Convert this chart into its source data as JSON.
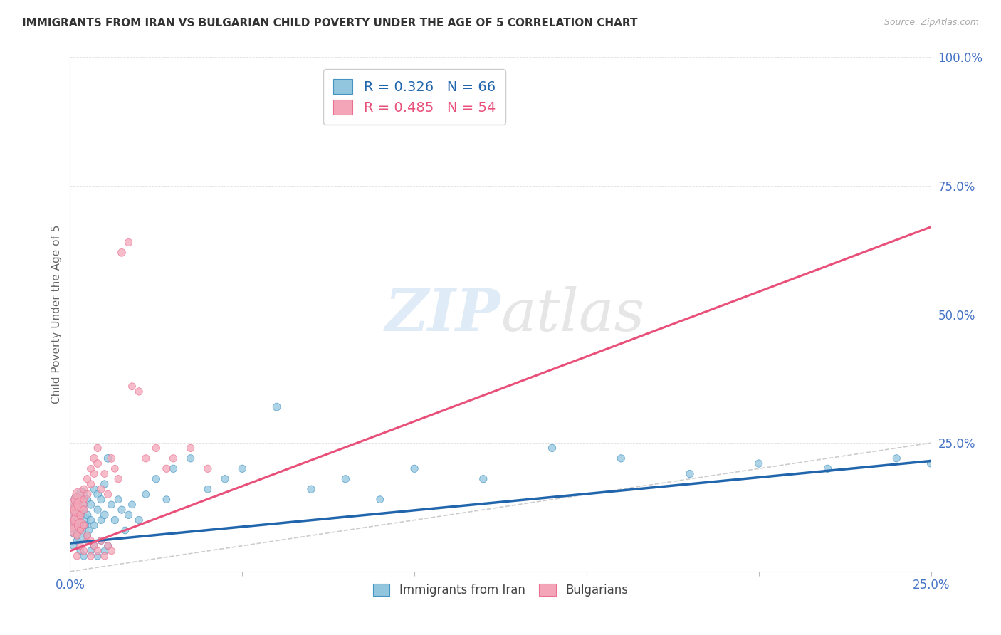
{
  "title": "IMMIGRANTS FROM IRAN VS BULGARIAN CHILD POVERTY UNDER THE AGE OF 5 CORRELATION CHART",
  "source": "Source: ZipAtlas.com",
  "ylabel": "Child Poverty Under the Age of 5",
  "legend_blue_label": "R = 0.326   N = 66",
  "legend_pink_label": "R = 0.485   N = 54",
  "legend_label_blue": "Immigrants from Iran",
  "legend_label_pink": "Bulgarians",
  "blue_color": "#92c5de",
  "pink_color": "#f4a6b8",
  "blue_edge_color": "#4393c3",
  "pink_edge_color": "#e87090",
  "blue_line_color": "#2166ac",
  "pink_line_color": "#e8507a",
  "diag_color": "#cccccc",
  "tick_color": "#4472c4",
  "watermark_color": "#d5e8f5",
  "xlim": [
    0.0,
    0.25
  ],
  "ylim": [
    0.0,
    1.0
  ],
  "blue_line_x": [
    0.0,
    0.25
  ],
  "blue_line_y": [
    0.055,
    0.215
  ],
  "pink_line_x": [
    0.0,
    0.25
  ],
  "pink_line_y": [
    0.04,
    0.67
  ],
  "blue_scatter_x": [
    0.0005,
    0.001,
    0.0015,
    0.002,
    0.002,
    0.0025,
    0.003,
    0.003,
    0.0035,
    0.004,
    0.004,
    0.0045,
    0.005,
    0.005,
    0.0055,
    0.006,
    0.006,
    0.007,
    0.007,
    0.008,
    0.008,
    0.009,
    0.009,
    0.01,
    0.01,
    0.011,
    0.012,
    0.013,
    0.014,
    0.015,
    0.016,
    0.017,
    0.018,
    0.02,
    0.022,
    0.025,
    0.028,
    0.03,
    0.035,
    0.04,
    0.045,
    0.05,
    0.06,
    0.07,
    0.08,
    0.09,
    0.1,
    0.12,
    0.14,
    0.16,
    0.18,
    0.2,
    0.22,
    0.24,
    0.25,
    0.001,
    0.002,
    0.003,
    0.004,
    0.005,
    0.006,
    0.007,
    0.008,
    0.009,
    0.01,
    0.011
  ],
  "blue_scatter_y": [
    0.1,
    0.12,
    0.08,
    0.14,
    0.09,
    0.11,
    0.13,
    0.07,
    0.15,
    0.1,
    0.12,
    0.09,
    0.11,
    0.14,
    0.08,
    0.1,
    0.13,
    0.16,
    0.09,
    0.12,
    0.15,
    0.1,
    0.14,
    0.11,
    0.17,
    0.22,
    0.13,
    0.1,
    0.14,
    0.12,
    0.08,
    0.11,
    0.13,
    0.1,
    0.15,
    0.18,
    0.14,
    0.2,
    0.22,
    0.16,
    0.18,
    0.2,
    0.32,
    0.16,
    0.18,
    0.14,
    0.2,
    0.18,
    0.24,
    0.22,
    0.19,
    0.21,
    0.2,
    0.22,
    0.21,
    0.05,
    0.06,
    0.04,
    0.03,
    0.07,
    0.04,
    0.05,
    0.03,
    0.06,
    0.04,
    0.05
  ],
  "blue_scatter_size": [
    180,
    160,
    200,
    140,
    170,
    150,
    160,
    180,
    140,
    160,
    55,
    50,
    60,
    55,
    50,
    55,
    60,
    55,
    50,
    55,
    60,
    50,
    55,
    60,
    55,
    60,
    50,
    55,
    50,
    55,
    50,
    55,
    50,
    55,
    50,
    55,
    50,
    55,
    55,
    50,
    55,
    55,
    60,
    55,
    55,
    50,
    55,
    55,
    55,
    55,
    55,
    55,
    55,
    55,
    55,
    50,
    50,
    50,
    50,
    50,
    50,
    50,
    50,
    50,
    50,
    50
  ],
  "pink_scatter_x": [
    0.0005,
    0.001,
    0.001,
    0.0015,
    0.002,
    0.002,
    0.002,
    0.0025,
    0.003,
    0.003,
    0.003,
    0.004,
    0.004,
    0.004,
    0.005,
    0.005,
    0.006,
    0.006,
    0.007,
    0.007,
    0.008,
    0.008,
    0.009,
    0.01,
    0.011,
    0.012,
    0.013,
    0.014,
    0.015,
    0.017,
    0.018,
    0.02,
    0.022,
    0.025,
    0.028,
    0.03,
    0.035,
    0.04,
    0.002,
    0.003,
    0.004,
    0.005,
    0.006,
    0.007,
    0.008,
    0.009,
    0.01,
    0.011,
    0.012,
    0.005,
    0.003,
    0.002,
    0.004,
    0.006
  ],
  "pink_scatter_y": [
    0.09,
    0.11,
    0.13,
    0.08,
    0.1,
    0.14,
    0.12,
    0.15,
    0.09,
    0.13,
    0.11,
    0.16,
    0.12,
    0.14,
    0.18,
    0.15,
    0.2,
    0.17,
    0.22,
    0.19,
    0.24,
    0.21,
    0.16,
    0.19,
    0.15,
    0.22,
    0.2,
    0.18,
    0.62,
    0.64,
    0.36,
    0.35,
    0.22,
    0.24,
    0.2,
    0.22,
    0.24,
    0.2,
    0.03,
    0.05,
    0.04,
    0.06,
    0.03,
    0.05,
    0.04,
    0.06,
    0.03,
    0.05,
    0.04,
    0.07,
    0.08,
    0.07,
    0.09,
    0.06
  ],
  "pink_scatter_size": [
    160,
    170,
    150,
    180,
    160,
    140,
    170,
    150,
    160,
    180,
    55,
    55,
    60,
    50,
    55,
    60,
    50,
    55,
    60,
    50,
    55,
    60,
    55,
    50,
    55,
    60,
    50,
    55,
    60,
    55,
    50,
    55,
    55,
    55,
    55,
    55,
    55,
    55,
    50,
    50,
    50,
    50,
    50,
    50,
    50,
    50,
    50,
    50,
    50,
    50,
    50,
    50,
    50,
    50
  ]
}
